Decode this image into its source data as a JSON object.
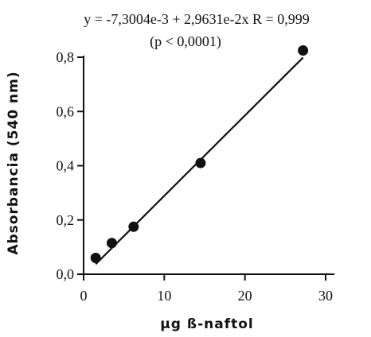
{
  "chart_data": {
    "type": "scatter",
    "annotations": {
      "equation": "y =  -7,3004e-3 + 2,9631e-2x   R = 0,999",
      "p_value": "(p < 0,0001)"
    },
    "xlabel": "µg   ß-naftol",
    "ylabel": "Absorbancia   (540  nm)",
    "xlim": [
      0,
      30
    ],
    "ylim": [
      0,
      0.8
    ],
    "x_ticks": [
      0,
      10,
      20,
      30
    ],
    "x_tick_labels": [
      "0",
      "10",
      "20",
      "30"
    ],
    "y_ticks": [
      0,
      0.2,
      0.4,
      0.6,
      0.8
    ],
    "y_tick_labels": [
      "0,0",
      "0,2",
      "0,4",
      "0,6",
      "0,8"
    ],
    "grid": false,
    "points": [
      {
        "x": 1.5,
        "y": 0.06
      },
      {
        "x": 3.5,
        "y": 0.115
      },
      {
        "x": 6.2,
        "y": 0.175
      },
      {
        "x": 14.5,
        "y": 0.41
      },
      {
        "x": 27.2,
        "y": 0.825
      }
    ],
    "fit": {
      "intercept": -0.0073004,
      "slope": 0.029631,
      "x_range": [
        1.5,
        27.2
      ]
    }
  }
}
